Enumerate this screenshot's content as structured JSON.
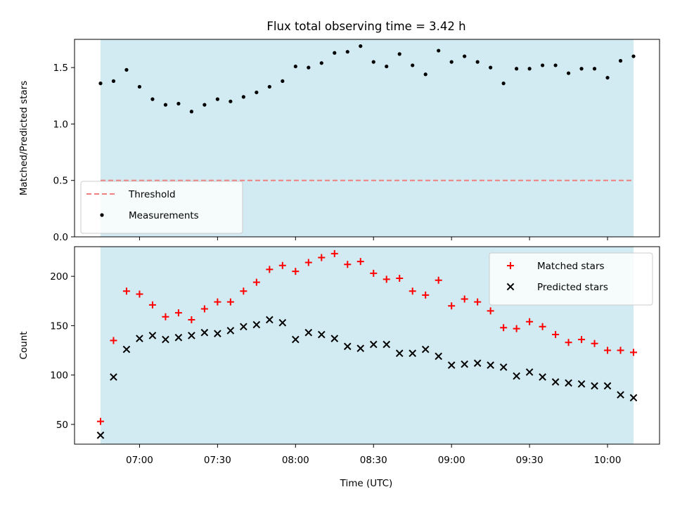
{
  "chart_data": [
    {
      "type": "scatter",
      "title": "Flux total observing time = 3.42 h",
      "xlabel": "",
      "ylabel": "Matched/Predicted stars",
      "xlim": [
        "06:35",
        "10:20"
      ],
      "ylim": [
        0,
        1.75
      ],
      "yticks": [
        0.0,
        0.5,
        1.0,
        1.5
      ],
      "ytick_labels": [
        "0.0",
        "0.5",
        "1.0",
        "1.5"
      ],
      "shaded_span": [
        "06:45",
        "10:10"
      ],
      "shade_color": "#add8e6",
      "threshold": {
        "name": "Threshold",
        "value": 0.5,
        "color": "#f08080"
      },
      "legend": {
        "placement": "lower-left",
        "entries": [
          "Threshold",
          "Measurements"
        ]
      },
      "series": [
        {
          "name": "Measurements",
          "marker": "dot",
          "color": "#000000",
          "x": [
            "06:45",
            "06:50",
            "06:55",
            "07:00",
            "07:05",
            "07:10",
            "07:15",
            "07:20",
            "07:25",
            "07:30",
            "07:35",
            "07:40",
            "07:45",
            "07:50",
            "07:55",
            "08:00",
            "08:05",
            "08:10",
            "08:15",
            "08:20",
            "08:25",
            "08:30",
            "08:35",
            "08:40",
            "08:45",
            "08:50",
            "08:55",
            "09:00",
            "09:05",
            "09:10",
            "09:15",
            "09:20",
            "09:25",
            "09:30",
            "09:35",
            "09:40",
            "09:45",
            "09:50",
            "09:55",
            "10:00",
            "10:05",
            "10:10"
          ],
          "y": [
            1.36,
            1.38,
            1.48,
            1.33,
            1.22,
            1.17,
            1.18,
            1.11,
            1.17,
            1.22,
            1.2,
            1.24,
            1.28,
            1.33,
            1.38,
            1.51,
            1.5,
            1.54,
            1.63,
            1.64,
            1.69,
            1.55,
            1.51,
            1.62,
            1.52,
            1.44,
            1.65,
            1.55,
            1.6,
            1.55,
            1.5,
            1.36,
            1.49,
            1.49,
            1.52,
            1.52,
            1.45,
            1.49,
            1.49,
            1.41,
            1.56,
            1.6
          ]
        }
      ]
    },
    {
      "type": "scatter",
      "title": "",
      "xlabel": "Time (UTC)",
      "ylabel": "Count",
      "xlim": [
        "06:35",
        "10:20"
      ],
      "xticks": [
        "07:00",
        "07:30",
        "08:00",
        "08:30",
        "09:00",
        "09:30",
        "10:00"
      ],
      "ylim": [
        30,
        230
      ],
      "yticks": [
        50,
        100,
        150,
        200
      ],
      "ytick_labels": [
        "50",
        "100",
        "150",
        "200"
      ],
      "shaded_span": [
        "06:45",
        "10:10"
      ],
      "shade_color": "#add8e6",
      "legend": {
        "placement": "top-right",
        "entries": [
          "Matched stars",
          "Predicted stars"
        ]
      },
      "series": [
        {
          "name": "Matched stars",
          "marker": "plus",
          "color": "#ff0000",
          "x": [
            "06:45",
            "06:50",
            "06:55",
            "07:00",
            "07:05",
            "07:10",
            "07:15",
            "07:20",
            "07:25",
            "07:30",
            "07:35",
            "07:40",
            "07:45",
            "07:50",
            "07:55",
            "08:00",
            "08:05",
            "08:10",
            "08:15",
            "08:20",
            "08:25",
            "08:30",
            "08:35",
            "08:40",
            "08:45",
            "08:50",
            "08:55",
            "09:00",
            "09:05",
            "09:10",
            "09:15",
            "09:20",
            "09:25",
            "09:30",
            "09:35",
            "09:40",
            "09:45",
            "09:50",
            "09:55",
            "10:00",
            "10:05",
            "10:10"
          ],
          "y": [
            53,
            135,
            185,
            182,
            171,
            159,
            163,
            156,
            167,
            174,
            174,
            185,
            194,
            207,
            211,
            205,
            214,
            219,
            223,
            212,
            215,
            203,
            197,
            198,
            185,
            181,
            196,
            170,
            177,
            174,
            165,
            148,
            147,
            154,
            149,
            141,
            133,
            136,
            132,
            125,
            125,
            123
          ]
        },
        {
          "name": "Predicted stars",
          "marker": "x",
          "color": "#000000",
          "x": [
            "06:45",
            "06:50",
            "06:55",
            "07:00",
            "07:05",
            "07:10",
            "07:15",
            "07:20",
            "07:25",
            "07:30",
            "07:35",
            "07:40",
            "07:45",
            "07:50",
            "07:55",
            "08:00",
            "08:05",
            "08:10",
            "08:15",
            "08:20",
            "08:25",
            "08:30",
            "08:35",
            "08:40",
            "08:45",
            "08:50",
            "08:55",
            "09:00",
            "09:05",
            "09:10",
            "09:15",
            "09:20",
            "09:25",
            "09:30",
            "09:35",
            "09:40",
            "09:45",
            "09:50",
            "09:55",
            "10:00",
            "10:05",
            "10:10"
          ],
          "y": [
            39,
            98,
            126,
            137,
            140,
            136,
            138,
            140,
            143,
            142,
            145,
            149,
            151,
            156,
            153,
            136,
            143,
            141,
            137,
            129,
            127,
            131,
            131,
            122,
            122,
            126,
            119,
            110,
            111,
            112,
            110,
            108,
            99,
            103,
            98,
            93,
            92,
            91,
            89,
            89,
            80,
            77
          ]
        }
      ]
    }
  ]
}
